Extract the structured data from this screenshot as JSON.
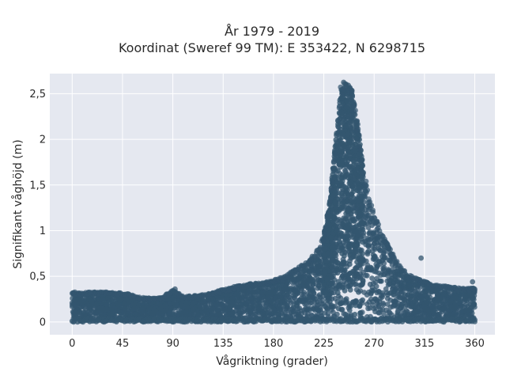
{
  "chart_data": {
    "type": "scatter",
    "title": [
      "År 1979 - 2019",
      "Koordinat (Sweref 99 TM): E 353422, N 6298715"
    ],
    "xlabel": "Vågriktning (grader)",
    "ylabel": "Signifikant våghöjd (m)",
    "xlim": [
      -20,
      378
    ],
    "ylim": [
      -0.14,
      2.72
    ],
    "x_ticks": [
      0,
      45,
      90,
      135,
      180,
      225,
      270,
      315,
      360
    ],
    "x_tick_labels": [
      "0",
      "45",
      "90",
      "135",
      "180",
      "225",
      "270",
      "315",
      "360"
    ],
    "y_ticks": [
      0,
      0.5,
      1,
      1.5,
      2,
      2.5
    ],
    "y_tick_labels": [
      "0",
      "0,5",
      "1",
      "1,5",
      "2",
      "2,5"
    ],
    "grid": true,
    "point_color": "#33566f",
    "plot_background": "#e5e8f0",
    "grid_color": "#ffffff",
    "envelope": {
      "direction": [
        0,
        10,
        20,
        30,
        40,
        50,
        60,
        70,
        80,
        90,
        100,
        110,
        120,
        130,
        140,
        150,
        160,
        170,
        180,
        190,
        200,
        210,
        220,
        225,
        230,
        235,
        240,
        245,
        250,
        255,
        260,
        265,
        270,
        275,
        280,
        290,
        300,
        310,
        320,
        330,
        340,
        350,
        360
      ],
      "max_height": [
        0.33,
        0.32,
        0.33,
        0.33,
        0.32,
        0.31,
        0.27,
        0.26,
        0.27,
        0.35,
        0.28,
        0.29,
        0.3,
        0.34,
        0.37,
        0.41,
        0.42,
        0.43,
        0.46,
        0.5,
        0.58,
        0.66,
        0.8,
        0.95,
        1.3,
        1.9,
        2.6,
        2.66,
        2.55,
        2.2,
        1.72,
        1.4,
        1.18,
        1.05,
        0.9,
        0.67,
        0.52,
        0.47,
        0.42,
        0.4,
        0.38,
        0.37,
        0.37
      ],
      "min_height": 0.0
    },
    "notable_points": [
      {
        "x": 92,
        "y": 0.36
      },
      {
        "x": 272,
        "y": 0.39
      },
      {
        "x": 312,
        "y": 0.7
      },
      {
        "x": 358,
        "y": 0.44
      }
    ]
  }
}
